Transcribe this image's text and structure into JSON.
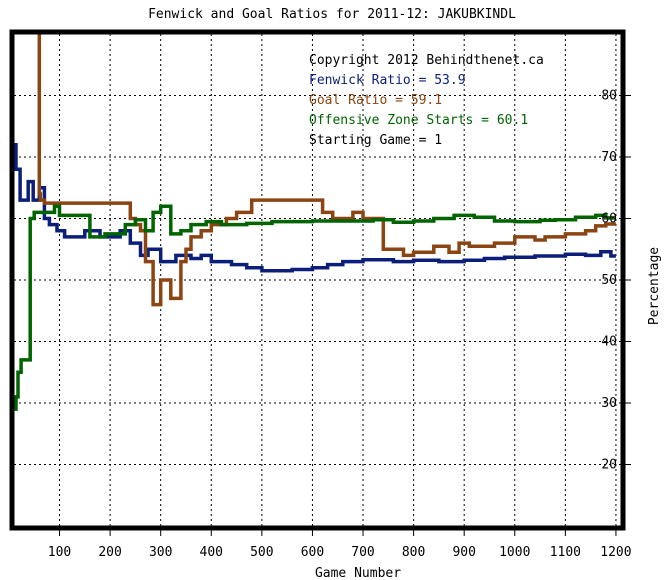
{
  "chart_data": {
    "type": "line",
    "title": "Fenwick and Goal Ratios for 2011-12: JAKUBKINDL",
    "xlabel": "Game Number",
    "ylabel": "Percentage",
    "xlim": [
      10,
      1210
    ],
    "ylim": [
      10,
      90
    ],
    "x_ticks": [
      100,
      200,
      300,
      400,
      500,
      600,
      700,
      800,
      900,
      1000,
      1100,
      1200
    ],
    "y_ticks": [
      20,
      30,
      40,
      50,
      60,
      70,
      80
    ],
    "grid": true,
    "annotations": [
      {
        "text": "Copyright 2012 Behindthenet.ca",
        "color": "#000000"
      },
      {
        "text": "Fenwick Ratio = 53.9",
        "color": "#0b1f7a"
      },
      {
        "text": "Goal Ratio = 59.1",
        "color": "#8b4513"
      },
      {
        "text": "Offensive Zone Starts = 60.1",
        "color": "#006400"
      },
      {
        "text": "Starting Game = 1",
        "color": "#000000"
      }
    ],
    "series": [
      {
        "name": "Fenwick Ratio",
        "color": "#0b1f7a",
        "x": [
          10,
          14,
          14,
          22,
          22,
          38,
          38,
          48,
          48,
          60,
          60,
          70,
          70,
          80,
          80,
          95,
          95,
          110,
          110,
          150,
          150,
          180,
          180,
          220,
          220,
          240,
          240,
          260,
          260,
          275,
          275,
          300,
          300,
          330,
          330,
          360,
          360,
          380,
          380,
          400,
          400,
          440,
          440,
          470,
          470,
          500,
          500,
          560,
          560,
          600,
          600,
          630,
          630,
          660,
          660,
          700,
          700,
          760,
          760,
          800,
          800,
          850,
          850,
          900,
          900,
          940,
          940,
          980,
          980,
          1040,
          1040,
          1100,
          1100,
          1140,
          1140,
          1170,
          1170,
          1190,
          1190,
          1200
        ],
        "y": [
          72,
          72,
          68,
          68,
          63,
          63,
          66,
          66,
          63,
          63,
          65,
          65,
          60,
          60,
          59,
          59,
          58,
          58,
          57,
          57,
          58,
          58,
          57,
          57,
          58,
          58,
          56,
          56,
          54,
          54,
          55,
          55,
          53,
          53,
          54,
          54,
          53.5,
          53.5,
          54,
          54,
          53,
          53,
          52.5,
          52.5,
          52,
          52,
          51.5,
          51.5,
          51.7,
          51.7,
          52,
          52,
          52.5,
          52.5,
          53,
          53,
          53.3,
          53.3,
          53,
          53,
          53.2,
          53.2,
          53,
          53,
          53.2,
          53.2,
          53.5,
          53.5,
          53.7,
          53.7,
          53.9,
          53.9,
          54.2,
          54.2,
          54,
          54,
          54.6,
          54.6,
          53.9,
          53.9
        ]
      },
      {
        "name": "Goal Ratio",
        "color": "#8b4513",
        "x": [
          60,
          60,
          62,
          62,
          70,
          70,
          240,
          240,
          250,
          250,
          260,
          260,
          270,
          270,
          285,
          285,
          300,
          300,
          320,
          320,
          340,
          340,
          350,
          350,
          360,
          360,
          380,
          380,
          400,
          400,
          430,
          430,
          450,
          450,
          480,
          480,
          620,
          620,
          640,
          640,
          680,
          680,
          700,
          700,
          740,
          740,
          780,
          780,
          800,
          800,
          840,
          840,
          870,
          870,
          890,
          890,
          910,
          910,
          960,
          960,
          1000,
          1000,
          1040,
          1040,
          1060,
          1060,
          1100,
          1100,
          1140,
          1140,
          1160,
          1160,
          1180,
          1180,
          1200
        ],
        "y": [
          90,
          64,
          64,
          63,
          63,
          62.5,
          62.5,
          60,
          60,
          59,
          59,
          58,
          58,
          53,
          53,
          46,
          46,
          50,
          50,
          47,
          47,
          53,
          53,
          55,
          55,
          57,
          57,
          58,
          58,
          59,
          59,
          60,
          60,
          61,
          61,
          63,
          63,
          61,
          61,
          60,
          60,
          61,
          61,
          60,
          60,
          55,
          55,
          54,
          54,
          54.5,
          54.5,
          55.5,
          55.5,
          54.5,
          54.5,
          56,
          56,
          55.5,
          55.5,
          56,
          56,
          57,
          57,
          56.5,
          56.5,
          57,
          57,
          57.5,
          57.5,
          58,
          58,
          58.8,
          58.8,
          59.1,
          59.1
        ]
      },
      {
        "name": "Offensive Zone Starts",
        "color": "#006400",
        "x": [
          10,
          14,
          14,
          18,
          18,
          24,
          24,
          42,
          42,
          50,
          50,
          90,
          90,
          100,
          100,
          160,
          160,
          190,
          190,
          230,
          230,
          250,
          250,
          270,
          270,
          285,
          285,
          300,
          300,
          320,
          320,
          340,
          340,
          360,
          360,
          390,
          390,
          420,
          420,
          470,
          470,
          520,
          520,
          600,
          600,
          720,
          720,
          760,
          760,
          800,
          800,
          840,
          840,
          880,
          880,
          920,
          920,
          960,
          960,
          1000,
          1000,
          1050,
          1050,
          1080,
          1080,
          1120,
          1120,
          1160,
          1160,
          1180,
          1180,
          1200
        ],
        "y": [
          29,
          29,
          31,
          31,
          35,
          35,
          37,
          37,
          60,
          60,
          61,
          61,
          62,
          62,
          60.5,
          60.5,
          57,
          57,
          57.5,
          57.5,
          59,
          59,
          59.8,
          59.8,
          58,
          58,
          61,
          61,
          62,
          62,
          57.5,
          57.5,
          58,
          58,
          59,
          59,
          59.5,
          59.5,
          59,
          59,
          59.2,
          59.2,
          59.5,
          59.5,
          59.6,
          59.6,
          59.8,
          59.8,
          59.4,
          59.4,
          59.6,
          59.6,
          60,
          60,
          60.5,
          60.5,
          60.2,
          60.2,
          59.6,
          59.6,
          59.5,
          59.5,
          59.7,
          59.7,
          59.8,
          59.8,
          60.2,
          60.2,
          60.5,
          60.5,
          60.1,
          60.1
        ]
      }
    ]
  }
}
